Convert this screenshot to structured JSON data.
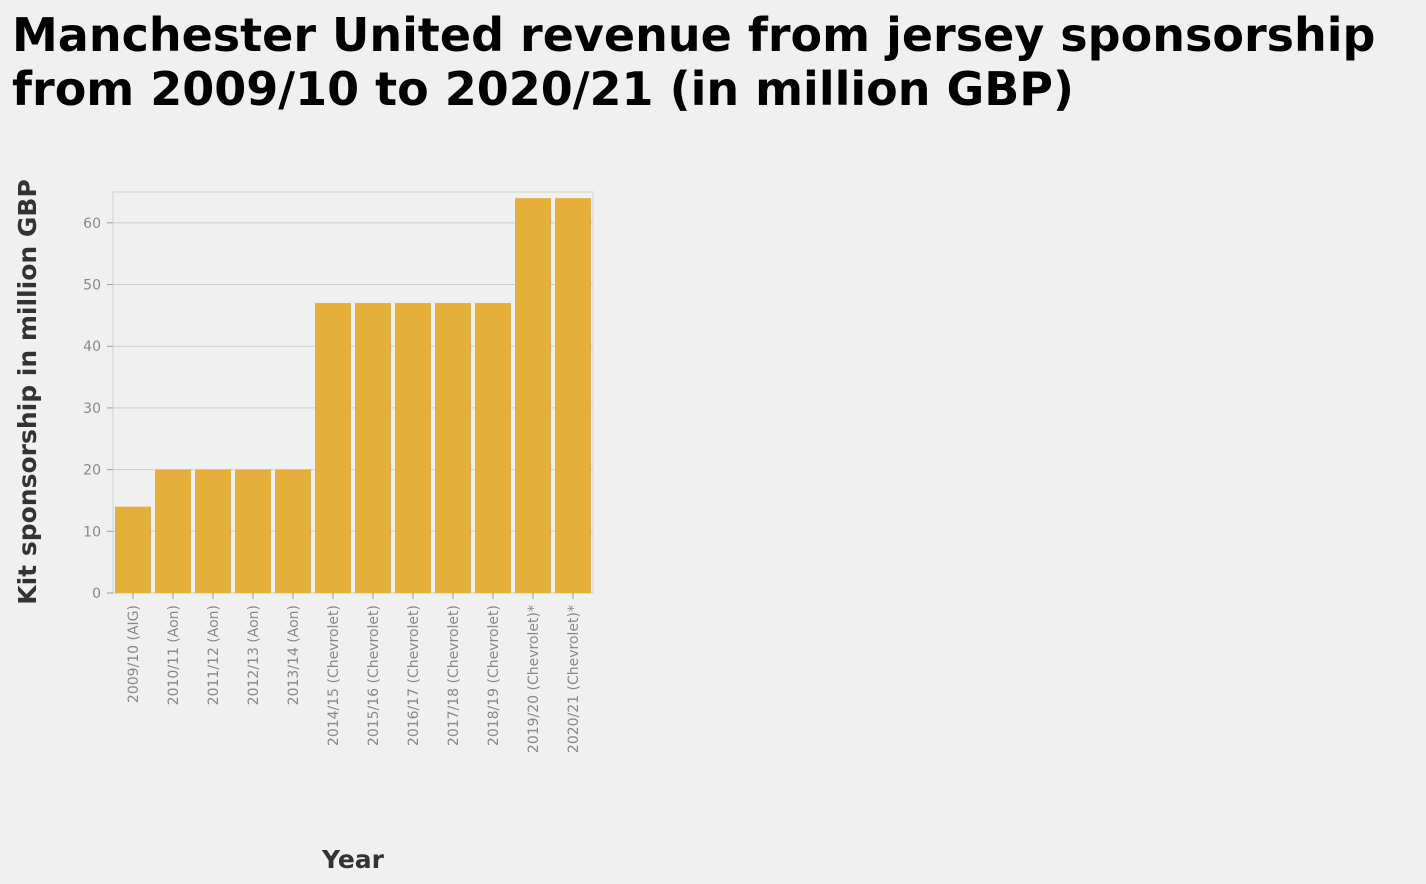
{
  "chart_data": {
    "type": "bar",
    "title": "Manchester United revenue from jersey sponsorship from 2009/10 to 2020/21 (in million GBP)",
    "xlabel": "Year",
    "ylabel": "Kit sponsorship in million GBP",
    "categories": [
      "2009/10 (AIG)",
      "2010/11 (Aon)",
      "2011/12 (Aon)",
      "2012/13 (Aon)",
      "2013/14 (Aon)",
      "2014/15 (Chevrolet)",
      "2015/16 (Chevrolet)",
      "2016/17 (Chevrolet)",
      "2017/18 (Chevrolet)",
      "2018/19 (Chevrolet)",
      "2019/20 (Chevrolet)*",
      "2020/21 (Chevrolet)*"
    ],
    "values": [
      14,
      20,
      20,
      20,
      20,
      47,
      47,
      47,
      47,
      47,
      64,
      64
    ],
    "ylim": [
      0,
      65
    ],
    "yticks": [
      0,
      10,
      20,
      30,
      40,
      50,
      60
    ],
    "grid": true,
    "bar_color": "#e3ae3a"
  }
}
